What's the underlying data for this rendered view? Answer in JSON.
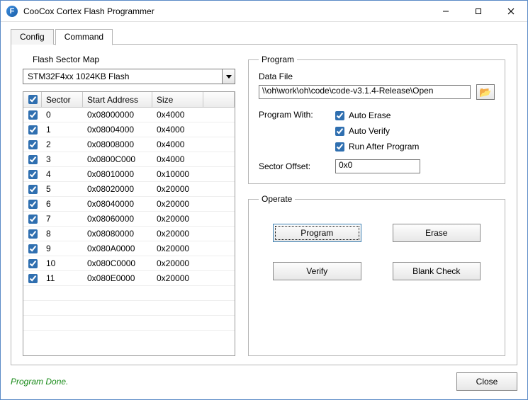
{
  "window": {
    "title": "CooCox Cortex Flash Programmer",
    "app_icon_letter": "F"
  },
  "tabs": {
    "config": "Config",
    "command": "Command",
    "active": "command"
  },
  "flash_map": {
    "label": "Flash Sector Map",
    "device": "STM32F4xx 1024KB Flash",
    "columns": {
      "sector": "Sector",
      "start": "Start Address",
      "size": "Size"
    },
    "header_checked": true,
    "rows": [
      {
        "checked": true,
        "sector": "0",
        "start": "0x08000000",
        "size": "0x4000"
      },
      {
        "checked": true,
        "sector": "1",
        "start": "0x08004000",
        "size": "0x4000"
      },
      {
        "checked": true,
        "sector": "2",
        "start": "0x08008000",
        "size": "0x4000"
      },
      {
        "checked": true,
        "sector": "3",
        "start": "0x0800C000",
        "size": "0x4000"
      },
      {
        "checked": true,
        "sector": "4",
        "start": "0x08010000",
        "size": "0x10000"
      },
      {
        "checked": true,
        "sector": "5",
        "start": "0x08020000",
        "size": "0x20000"
      },
      {
        "checked": true,
        "sector": "6",
        "start": "0x08040000",
        "size": "0x20000"
      },
      {
        "checked": true,
        "sector": "7",
        "start": "0x08060000",
        "size": "0x20000"
      },
      {
        "checked": true,
        "sector": "8",
        "start": "0x08080000",
        "size": "0x20000"
      },
      {
        "checked": true,
        "sector": "9",
        "start": "0x080A0000",
        "size": "0x20000"
      },
      {
        "checked": true,
        "sector": "10",
        "start": "0x080C0000",
        "size": "0x20000"
      },
      {
        "checked": true,
        "sector": "11",
        "start": "0x080E0000",
        "size": "0x20000"
      }
    ]
  },
  "program": {
    "legend": "Program",
    "data_file_label": "Data File",
    "data_file_value": "\\\\oh\\work\\oh\\code\\code-v3.1.4-Release\\Open",
    "program_with_label": "Program With:",
    "auto_erase": {
      "label": "Auto Erase",
      "checked": true
    },
    "auto_verify": {
      "label": "Auto Verify",
      "checked": true
    },
    "run_after": {
      "label": "Run After Program",
      "checked": true
    },
    "sector_offset_label": "Sector Offset:",
    "sector_offset_value": "0x0"
  },
  "operate": {
    "legend": "Operate",
    "program": "Program",
    "erase": "Erase",
    "verify": "Verify",
    "blank_check": "Blank Check"
  },
  "status": "Program Done.",
  "close": "Close"
}
